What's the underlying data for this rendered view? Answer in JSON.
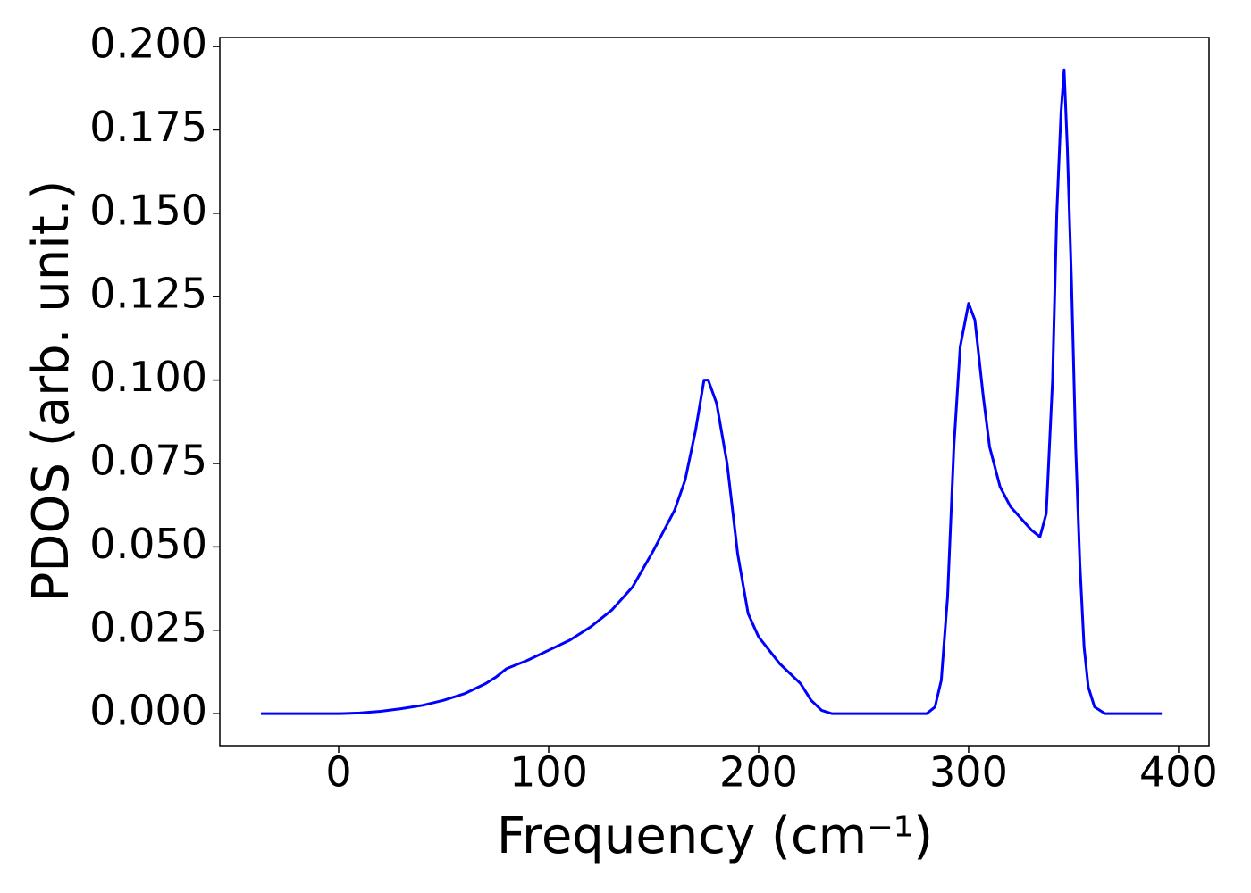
{
  "chart_data": {
    "type": "line",
    "xlabel": "Frequency (cm⁻¹)",
    "ylabel": "PDOS (arb. unit.)",
    "x": [
      -37,
      0,
      10,
      20,
      30,
      40,
      50,
      60,
      70,
      75,
      80,
      90,
      100,
      110,
      120,
      130,
      140,
      150,
      160,
      165,
      170,
      174,
      176,
      180,
      185,
      190,
      195,
      200,
      210,
      220,
      225,
      230,
      235,
      280,
      284,
      287,
      290,
      293,
      296,
      300,
      303,
      307,
      310,
      315,
      320,
      330,
      334,
      337,
      340,
      342,
      344,
      345.5,
      347,
      349,
      351,
      353,
      355,
      357,
      360,
      365,
      392
    ],
    "series": [
      {
        "color": "#0000ff",
        "values": [
          0,
          0,
          0.0002,
          0.0007,
          0.0015,
          0.0025,
          0.004,
          0.006,
          0.009,
          0.011,
          0.0135,
          0.016,
          0.019,
          0.022,
          0.026,
          0.031,
          0.038,
          0.049,
          0.061,
          0.07,
          0.085,
          0.1,
          0.1,
          0.093,
          0.075,
          0.048,
          0.03,
          0.023,
          0.015,
          0.009,
          0.004,
          0.001,
          0,
          0,
          0.002,
          0.01,
          0.035,
          0.08,
          0.11,
          0.123,
          0.118,
          0.095,
          0.08,
          0.068,
          0.062,
          0.055,
          0.053,
          0.06,
          0.1,
          0.15,
          0.18,
          0.193,
          0.17,
          0.13,
          0.08,
          0.045,
          0.02,
          0.008,
          0.002,
          0,
          0
        ]
      }
    ],
    "xlim": [
      -56.6,
      414.5
    ],
    "xticks": [
      0,
      100,
      200,
      300,
      400
    ],
    "ylim": [
      -0.0096,
      0.2027
    ],
    "yticks": [
      {
        "value": 0,
        "label": "0.000"
      },
      {
        "value": 0.025,
        "label": "0.025"
      },
      {
        "value": 0.05,
        "label": "0.050"
      },
      {
        "value": 0.075,
        "label": "0.075"
      },
      {
        "value": 0.1,
        "label": "0.100"
      },
      {
        "value": 0.125,
        "label": "0.125"
      },
      {
        "value": 0.15,
        "label": "0.150"
      },
      {
        "value": 0.175,
        "label": "0.175"
      },
      {
        "value": 0.2,
        "label": "0.200"
      }
    ],
    "grid": false
  }
}
